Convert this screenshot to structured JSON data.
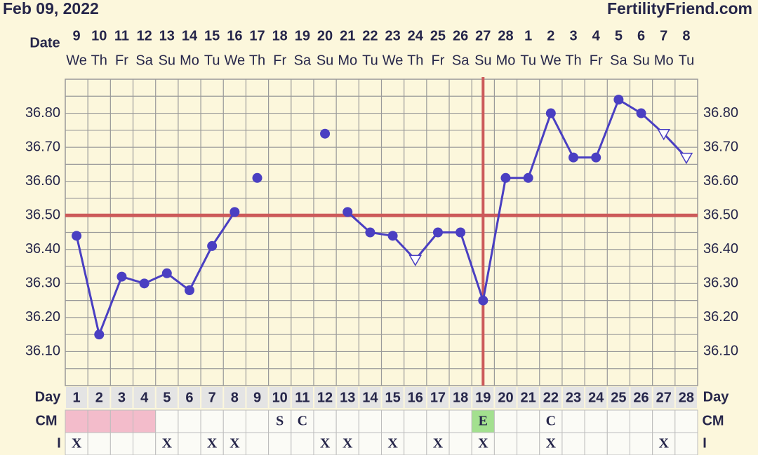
{
  "header": {
    "date": "Feb 09, 2022",
    "site": "FertilityFriend.com"
  },
  "chart_data": {
    "type": "line",
    "date_label": "Date",
    "categories": [
      "9",
      "10",
      "11",
      "12",
      "13",
      "14",
      "15",
      "16",
      "17",
      "18",
      "19",
      "20",
      "21",
      "22",
      "23",
      "24",
      "25",
      "26",
      "27",
      "28",
      "1",
      "2",
      "3",
      "4",
      "5",
      "6",
      "7",
      "8"
    ],
    "weekdays": [
      "We",
      "Th",
      "Fr",
      "Sa",
      "Su",
      "Mo",
      "Tu",
      "We",
      "Th",
      "Fr",
      "Sa",
      "Su",
      "Mo",
      "Tu",
      "We",
      "Th",
      "Fr",
      "Sa",
      "Su",
      "Mo",
      "Tu",
      "We",
      "Th",
      "Fr",
      "Sa",
      "Su",
      "Mo",
      "Tu"
    ],
    "day_label": "Day",
    "days": [
      1,
      2,
      3,
      4,
      5,
      6,
      7,
      8,
      9,
      10,
      11,
      12,
      13,
      14,
      15,
      16,
      17,
      18,
      19,
      20,
      21,
      22,
      23,
      24,
      25,
      26,
      27,
      28
    ],
    "series": [
      {
        "color": "#4a3fc2",
        "values": [
          36.44,
          36.15,
          36.32,
          36.3,
          36.33,
          36.28,
          36.41,
          36.51,
          null,
          null,
          null,
          null,
          36.51,
          36.45,
          36.44,
          36.37,
          36.45,
          36.45,
          36.25,
          36.61,
          36.61,
          36.8,
          36.67,
          36.67,
          36.84,
          36.8,
          36.74,
          36.67
        ],
        "markers": [
          "dot",
          "dot",
          "dot",
          "dot",
          "dot",
          "dot",
          "dot",
          "dot",
          null,
          null,
          null,
          null,
          "dot",
          "dot",
          "dot",
          "triangle",
          "dot",
          "dot",
          "dot",
          "dot",
          "dot",
          "dot",
          "dot",
          "dot",
          "dot",
          "dot",
          "triangle",
          "triangle"
        ]
      },
      {
        "color": "#4a3fc2",
        "values": [
          null,
          null,
          null,
          null,
          null,
          null,
          null,
          null,
          36.61,
          null,
          null,
          36.74,
          null,
          null,
          null,
          null,
          null,
          null,
          null,
          null,
          null,
          null,
          null,
          null,
          null,
          null,
          null,
          null
        ]
      }
    ],
    "coverline": {
      "value": 36.5,
      "color": "#cc5a5a"
    },
    "ovulation_day": 19,
    "ylim": [
      36.0,
      36.9
    ],
    "yticks": [
      {
        "value": 36.1,
        "label": "36.10"
      },
      {
        "value": 36.2,
        "label": "36.20"
      },
      {
        "value": 36.3,
        "label": "36.30"
      },
      {
        "value": 36.4,
        "label": "36.40"
      },
      {
        "value": 36.5,
        "label": "36.50"
      },
      {
        "value": 36.6,
        "label": "36.60"
      },
      {
        "value": 36.7,
        "label": "36.70"
      },
      {
        "value": 36.8,
        "label": "36.80"
      }
    ],
    "ygrid": [
      36.05,
      36.1,
      36.15,
      36.2,
      36.25,
      36.3,
      36.35,
      36.4,
      36.45,
      36.5,
      36.55,
      36.6,
      36.65,
      36.7,
      36.75,
      36.8,
      36.85
    ],
    "rows": [
      {
        "label": "CM",
        "cells": [
          null,
          null,
          null,
          null,
          null,
          null,
          null,
          null,
          null,
          "S",
          "C",
          null,
          null,
          null,
          null,
          null,
          null,
          null,
          "E",
          null,
          null,
          "C",
          null,
          null,
          null,
          null,
          null,
          null
        ],
        "cell_colors": [
          "#f3bccb",
          "#f3bccb",
          "#f3bccb",
          "#f3bccb",
          null,
          null,
          null,
          null,
          null,
          null,
          null,
          null,
          null,
          null,
          null,
          null,
          null,
          null,
          "#a3e08f",
          null,
          null,
          null,
          null,
          null,
          null,
          null,
          null,
          null
        ]
      },
      {
        "label": "I",
        "cells": [
          "X",
          null,
          null,
          null,
          "X",
          null,
          "X",
          "X",
          null,
          null,
          null,
          "X",
          "X",
          null,
          "X",
          null,
          "X",
          null,
          "X",
          null,
          null,
          "X",
          null,
          null,
          null,
          null,
          "X",
          null
        ]
      }
    ]
  }
}
